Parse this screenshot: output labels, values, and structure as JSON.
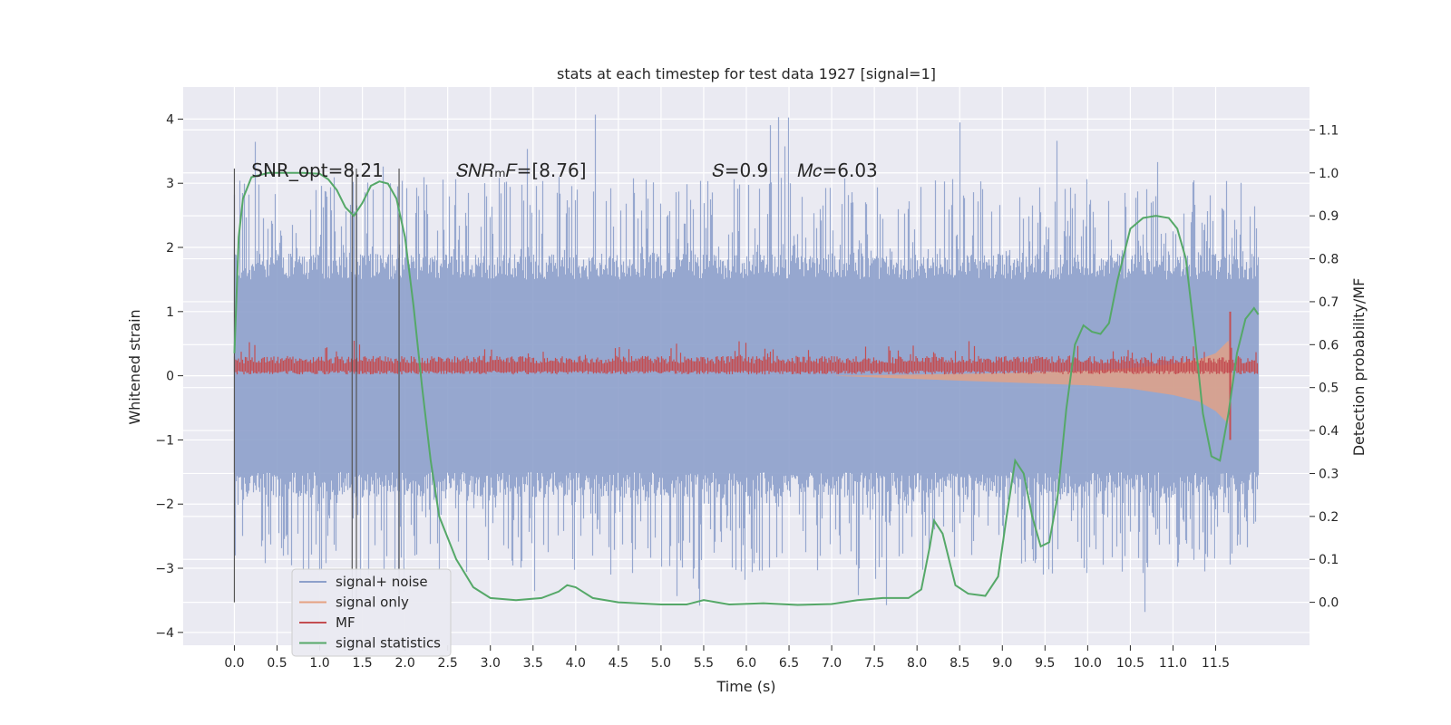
{
  "chart_data": {
    "type": "line",
    "title": "stats at each timestep for test data 1927 [signal=1]",
    "xlabel": "Time (s)",
    "ylabel_left": "Whitened strain",
    "ylabel_right": "Detection probability/MF",
    "xlim": [
      -0.6,
      12.6
    ],
    "ylim_left": [
      -4.2,
      4.5
    ],
    "ylim_right": [
      -0.1,
      1.2
    ],
    "x_ticks": [
      0.0,
      0.5,
      1.0,
      1.5,
      2.0,
      2.5,
      3.0,
      3.5,
      4.0,
      4.5,
      5.0,
      5.5,
      6.0,
      6.5,
      7.0,
      7.5,
      8.0,
      8.5,
      9.0,
      9.5,
      10.0,
      10.5,
      11.0,
      11.5
    ],
    "x_tick_labels": [
      "0.0",
      "0.5",
      "1.0",
      "1.5",
      "2.0",
      "2.5",
      "3.0",
      "3.5",
      "4.0",
      "4.5",
      "5.0",
      "5.5",
      "6.0",
      "6.5",
      "7.0",
      "7.5",
      "8.0",
      "8.5",
      "9.0",
      "9.5",
      "10.0",
      "10.5",
      "11.0",
      "11.5"
    ],
    "y_ticks_left": [
      -4,
      -3,
      -2,
      -1,
      0,
      1,
      2,
      3,
      4
    ],
    "y_tick_labels_left": [
      "−4",
      "−3",
      "−2",
      "−1",
      "0",
      "1",
      "2",
      "3",
      "4"
    ],
    "y_ticks_right": [
      0.0,
      0.1,
      0.2,
      0.3,
      0.4,
      0.5,
      0.6,
      0.7,
      0.8,
      0.9,
      1.0,
      1.1
    ],
    "y_tick_labels_right": [
      "0.0",
      "0.1",
      "0.2",
      "0.3",
      "0.4",
      "0.5",
      "0.6",
      "0.7",
      "0.8",
      "0.9",
      "1.0",
      "1.1"
    ],
    "grid": true,
    "annotations": [
      {
        "text": "SNR_opt=8.21",
        "x": 0.2,
        "y_right": 1.0
      },
      {
        "text": "𝑆𝑁𝑅ₘ𝐹=[8.76]",
        "x": 2.6,
        "y_right": 1.0
      },
      {
        "text": "𝑆=0.9",
        "x": 5.6,
        "y_right": 1.0
      },
      {
        "text": "𝑀𝑐=6.03",
        "x": 6.6,
        "y_right": 1.0
      }
    ],
    "vertical_markers": {
      "x": [
        0.0,
        1.38,
        1.43,
        1.93
      ],
      "y_range_right": [
        0.0,
        1.01
      ]
    },
    "legend": {
      "location": "lower-left",
      "entries": [
        "signal+ noise",
        "signal only",
        "MF",
        "signal statistics"
      ]
    },
    "series": [
      {
        "name": "signal+ noise",
        "axis": "left",
        "color": "#8da0cb",
        "x_range": [
          0.0,
          12.0
        ],
        "envelope": 1.5,
        "spike_max": 4.1
      },
      {
        "name": "signal only",
        "axis": "left",
        "color": "#e5a182",
        "x": [
          7.0,
          8.0,
          9.0,
          10.0,
          10.5,
          11.0,
          11.3,
          11.5,
          11.65,
          11.7
        ],
        "upper": [
          0.0,
          0.02,
          0.04,
          0.08,
          0.12,
          0.18,
          0.25,
          0.35,
          0.55,
          0.0
        ],
        "lower": [
          0.0,
          -0.05,
          -0.1,
          -0.15,
          -0.2,
          -0.3,
          -0.4,
          -0.55,
          -0.75,
          0.0
        ]
      },
      {
        "name": "MF",
        "axis": "left",
        "color": "#c44e52",
        "x_range": [
          0.0,
          12.0
        ],
        "baseline": 0.13,
        "peak_x": 11.67,
        "peak_y": 1.0
      },
      {
        "name": "signal statistics",
        "axis": "right",
        "color": "#55a868",
        "x": [
          0.0,
          0.05,
          0.1,
          0.2,
          0.4,
          0.6,
          0.8,
          1.0,
          1.1,
          1.2,
          1.3,
          1.4,
          1.5,
          1.6,
          1.7,
          1.8,
          1.9,
          2.0,
          2.1,
          2.2,
          2.3,
          2.4,
          2.6,
          2.8,
          3.0,
          3.3,
          3.6,
          3.8,
          3.9,
          4.0,
          4.2,
          4.5,
          5.0,
          5.3,
          5.5,
          5.8,
          6.2,
          6.6,
          7.0,
          7.3,
          7.6,
          7.9,
          8.05,
          8.15,
          8.2,
          8.3,
          8.45,
          8.6,
          8.8,
          8.95,
          9.05,
          9.15,
          9.25,
          9.35,
          9.45,
          9.55,
          9.65,
          9.75,
          9.85,
          9.95,
          10.05,
          10.15,
          10.25,
          10.35,
          10.5,
          10.65,
          10.8,
          10.95,
          11.05,
          11.15,
          11.25,
          11.35,
          11.45,
          11.55,
          11.65,
          11.75,
          11.85,
          11.95,
          12.0
        ],
        "values": [
          0.58,
          0.85,
          0.94,
          0.99,
          1.0,
          1.0,
          1.0,
          0.998,
          0.985,
          0.96,
          0.92,
          0.9,
          0.93,
          0.97,
          0.98,
          0.975,
          0.94,
          0.85,
          0.69,
          0.5,
          0.33,
          0.2,
          0.1,
          0.035,
          0.01,
          0.005,
          0.01,
          0.025,
          0.04,
          0.035,
          0.01,
          0.0,
          -0.005,
          -0.005,
          0.005,
          -0.005,
          -0.002,
          -0.006,
          -0.004,
          0.005,
          0.01,
          0.01,
          0.03,
          0.13,
          0.19,
          0.16,
          0.04,
          0.02,
          0.015,
          0.06,
          0.2,
          0.33,
          0.3,
          0.2,
          0.13,
          0.14,
          0.25,
          0.45,
          0.6,
          0.645,
          0.63,
          0.625,
          0.65,
          0.75,
          0.87,
          0.895,
          0.9,
          0.895,
          0.87,
          0.8,
          0.63,
          0.44,
          0.34,
          0.33,
          0.44,
          0.58,
          0.66,
          0.685,
          0.67
        ]
      }
    ]
  }
}
